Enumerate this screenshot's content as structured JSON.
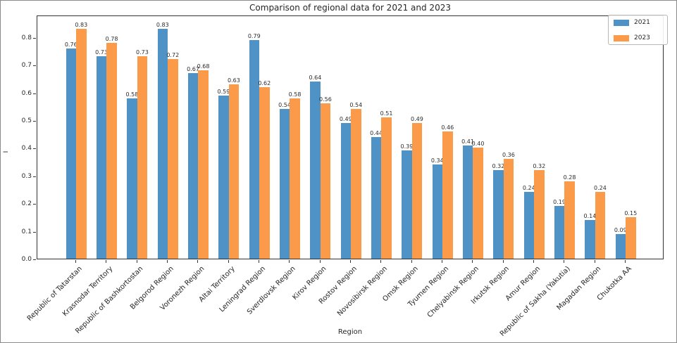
{
  "figure": {
    "title": "Comparison of regional data for 2021 and 2023",
    "xlabel": "Region",
    "ylabel": "I"
  },
  "chart_data": {
    "type": "bar",
    "title": "Comparison of regional data for 2021 and 2023",
    "xlabel": "Region",
    "ylabel": "I",
    "grid": false,
    "legend_position": "upper right",
    "bar_value_labels": true,
    "ylim": [
      0,
      0.881
    ],
    "yticks": [
      0.0,
      0.1,
      0.2,
      0.3,
      0.4,
      0.5,
      0.6,
      0.7,
      0.8
    ],
    "categories": [
      "Republic of Tatarstan",
      "Krasnodar Territory",
      "Republic of Bashkortostan",
      "Belgorod Region",
      "Voronezh Region",
      "Altai Territory",
      "Leningrad Region",
      "Sverdlovsk Region",
      "Kirov Region",
      "Rostov Region",
      "Novosibirsk Region",
      "Omsk Region",
      "Tyumen Region",
      "Chelyabinsk Region",
      "Irkutsk Region",
      "Amur Region",
      "Republic of Sakha (Yakutia)",
      "Magadan Region",
      "Chukotka AA"
    ],
    "series": [
      {
        "name": "2021",
        "color": "#4f92c6",
        "values": [
          0.76,
          0.73,
          0.58,
          0.83,
          0.67,
          0.59,
          0.79,
          0.54,
          0.64,
          0.49,
          0.44,
          0.39,
          0.34,
          0.41,
          0.32,
          0.24,
          0.19,
          0.14,
          0.09
        ]
      },
      {
        "name": "2023",
        "color": "#fb9a49",
        "values": [
          0.83,
          0.78,
          0.73,
          0.72,
          0.68,
          0.63,
          0.62,
          0.58,
          0.56,
          0.54,
          0.51,
          0.49,
          0.46,
          0.4,
          0.36,
          0.32,
          0.28,
          0.24,
          0.15
        ]
      }
    ]
  }
}
